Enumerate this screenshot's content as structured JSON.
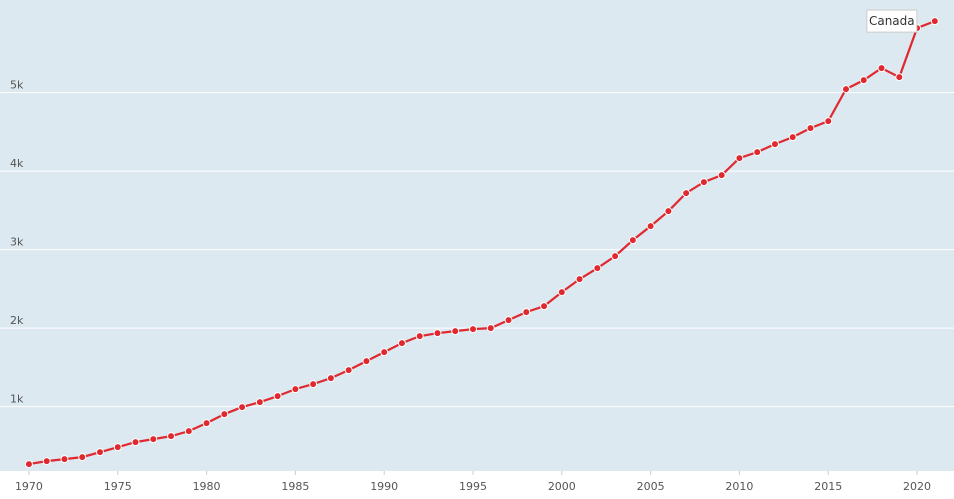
{
  "chart_data": {
    "type": "line",
    "x": [
      1970,
      1971,
      1972,
      1973,
      1974,
      1975,
      1976,
      1977,
      1978,
      1979,
      1980,
      1981,
      1982,
      1983,
      1984,
      1985,
      1986,
      1987,
      1988,
      1989,
      1990,
      1991,
      1992,
      1993,
      1994,
      1995,
      1996,
      1997,
      1998,
      1999,
      2000,
      2001,
      2002,
      2003,
      2004,
      2005,
      2006,
      2007,
      2008,
      2009,
      2010,
      2011,
      2012,
      2013,
      2014,
      2015,
      2016,
      2017,
      2018,
      2019,
      2020,
      2021
    ],
    "series": [
      {
        "name": "Canada",
        "color": "#e0282f",
        "values": [
          268,
          306,
          331,
          357,
          420,
          484,
          548,
          586,
          624,
          688,
          790,
          904,
          994,
          1057,
          1134,
          1223,
          1287,
          1363,
          1465,
          1580,
          1694,
          1809,
          1898,
          1936,
          1962,
          1987,
          2000,
          2102,
          2204,
          2280,
          2459,
          2624,
          2764,
          2917,
          3121,
          3299,
          3490,
          3720,
          3860,
          3949,
          4166,
          4242,
          4344,
          4433,
          4548,
          4637,
          5045,
          5159,
          5312,
          5197,
          5822,
          5911
        ]
      }
    ],
    "xlim": [
      1968.37,
      2022.08
    ],
    "xticks": [
      1970,
      1975,
      1980,
      1985,
      1990,
      1995,
      2000,
      2005,
      2010,
      2015,
      2020
    ],
    "ylim": [
      180,
      6180
    ],
    "yticks": [
      {
        "value": 1000,
        "label": "1k"
      },
      {
        "value": 2000,
        "label": "2k"
      },
      {
        "value": 3000,
        "label": "3k"
      },
      {
        "value": 4000,
        "label": "4k"
      },
      {
        "value": 5000,
        "label": "5k"
      }
    ],
    "grid": true,
    "background": "#dde9f1"
  }
}
